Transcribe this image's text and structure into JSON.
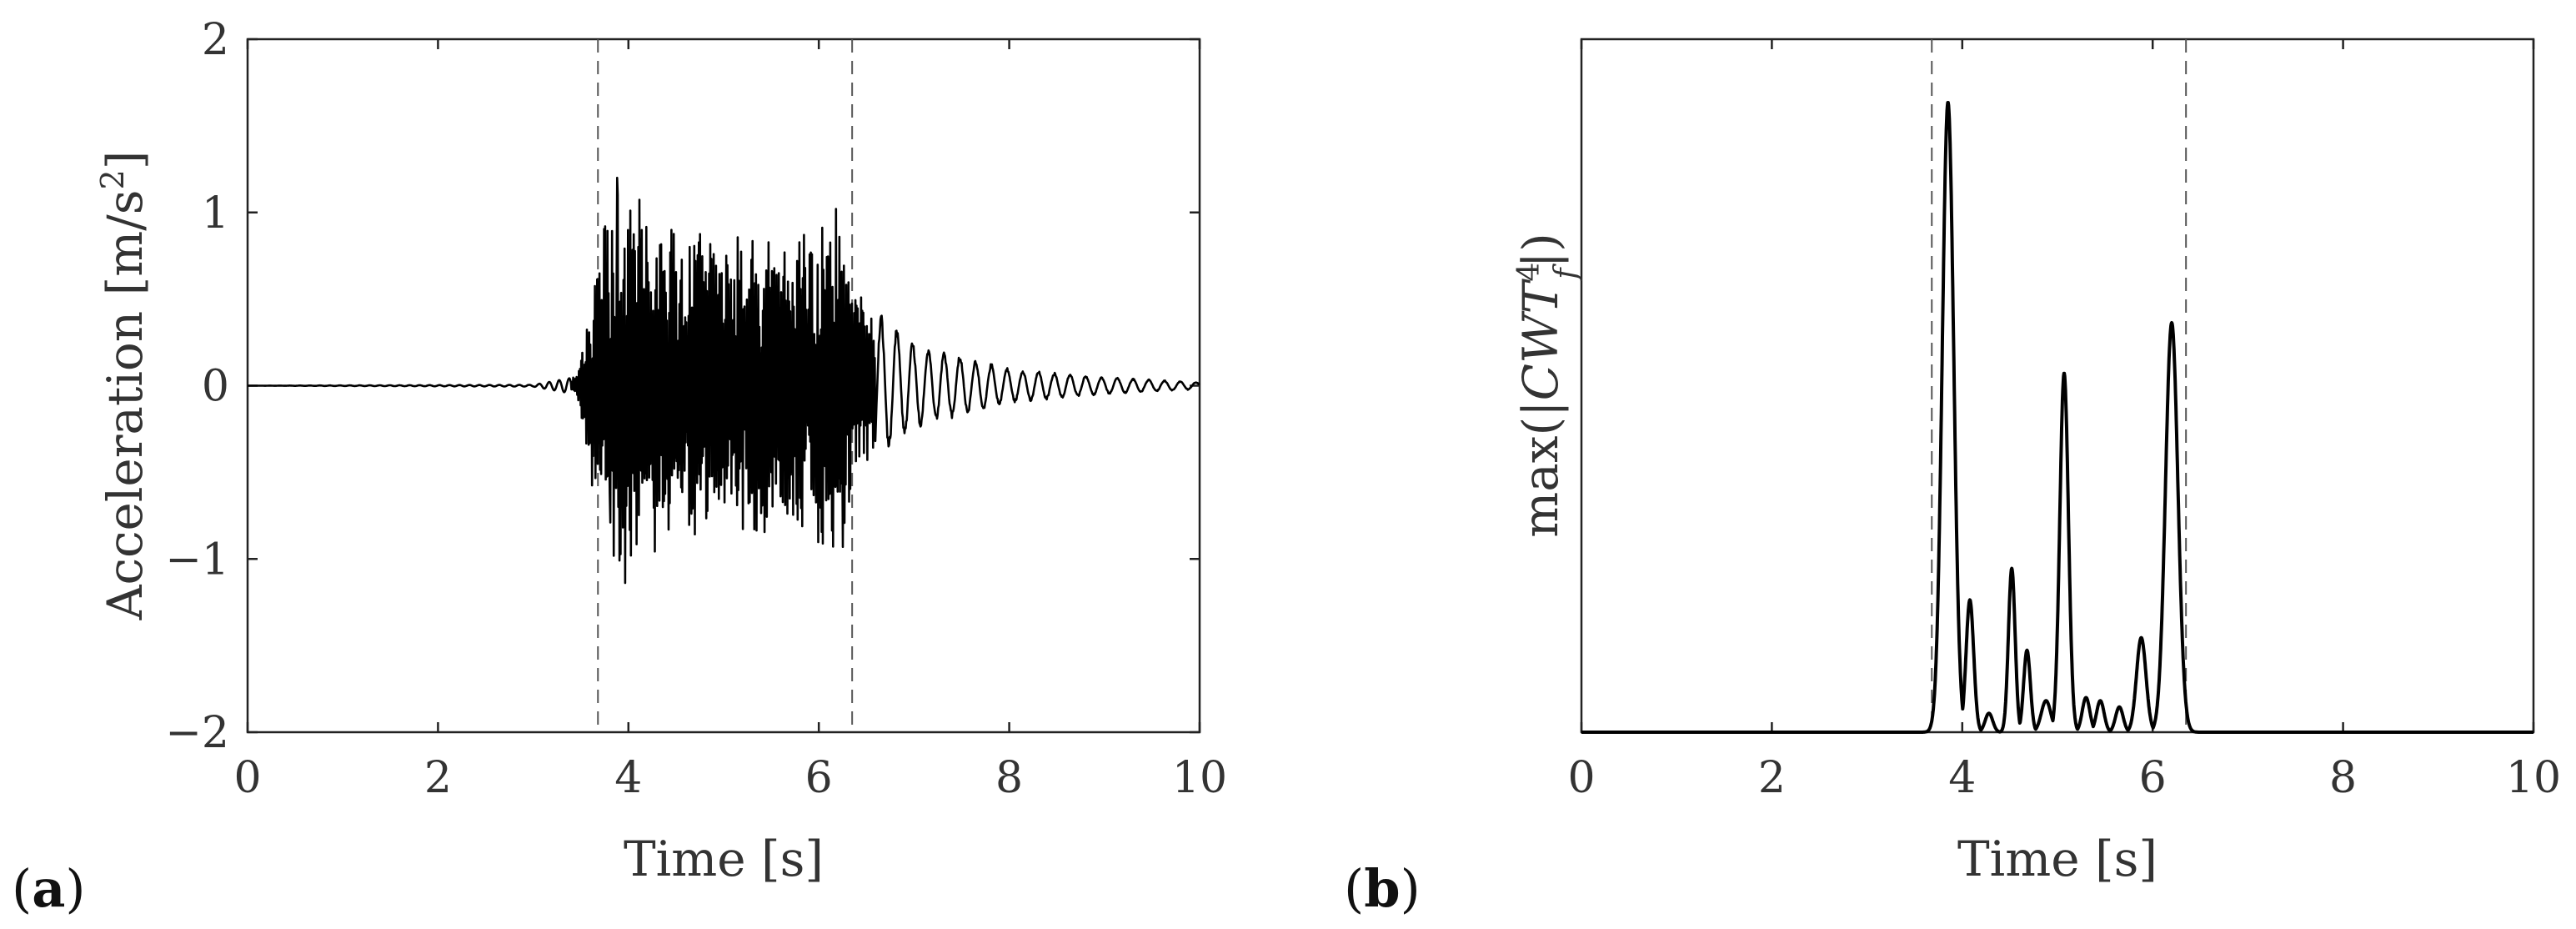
{
  "chart_data": [
    {
      "panel_label": "a",
      "type": "line",
      "xlabel": "Time [s]",
      "ylabel_text": "Acceleration [m/s",
      "ylabel_sup": "2",
      "ylabel_close": "]",
      "xlim": [
        0,
        10
      ],
      "ylim": [
        -2,
        2
      ],
      "xticks": [
        0,
        2,
        4,
        6,
        8,
        10
      ],
      "yticks": [
        -2,
        -1,
        0,
        1,
        2
      ],
      "xtick_labels": [
        "0",
        "2",
        "4",
        "6",
        "8",
        "10"
      ],
      "ytick_labels": [
        "−2",
        "−1",
        "0",
        "1",
        "2"
      ],
      "vlines": [
        3.68,
        6.35
      ],
      "grid": false,
      "series_envelope": [
        {
          "t": 0.0,
          "amp": 0.0
        },
        {
          "t": 3.0,
          "amp": 0.005
        },
        {
          "t": 3.45,
          "amp": 0.05
        },
        {
          "t": 3.55,
          "amp": 0.35
        },
        {
          "t": 3.7,
          "amp": 0.9
        },
        {
          "t": 3.85,
          "amp": 1.2
        },
        {
          "t": 4.5,
          "amp": 0.9
        },
        {
          "t": 5.5,
          "amp": 0.85
        },
        {
          "t": 6.2,
          "amp": 1.0
        },
        {
          "t": 6.4,
          "amp": 0.55
        },
        {
          "t": 7.0,
          "amp": 0.25
        },
        {
          "t": 8.0,
          "amp": 0.1
        },
        {
          "t": 9.0,
          "amp": 0.05
        },
        {
          "t": 10.0,
          "amp": 0.02
        }
      ],
      "peaks": [
        {
          "t": 3.88,
          "y": 1.2
        },
        {
          "t": 4.02,
          "y": -0.98
        },
        {
          "t": 6.18,
          "y": 1.02
        },
        {
          "t": 6.25,
          "y": -0.93
        },
        {
          "t": 3.75,
          "y": 0.92
        },
        {
          "t": 3.8,
          "y": -0.62
        }
      ]
    },
    {
      "panel_label": "b",
      "type": "line",
      "xlabel": "Time [s]",
      "ylabel_prefix": "max(|",
      "ylabel_var": "CWT",
      "ylabel_sup": "4",
      "ylabel_sub": "f",
      "ylabel_suffix": "|)",
      "xlim": [
        0,
        10
      ],
      "ylim": [
        0,
        1.1
      ],
      "xticks": [
        0,
        2,
        4,
        6,
        8,
        10
      ],
      "xtick_labels": [
        "0",
        "2",
        "4",
        "6",
        "8",
        "10"
      ],
      "vlines": [
        3.68,
        6.35
      ],
      "grid": false,
      "peaks": [
        {
          "t": 3.85,
          "y": 1.0,
          "w": 0.06
        },
        {
          "t": 4.08,
          "y": 0.21,
          "w": 0.04
        },
        {
          "t": 4.28,
          "y": 0.03,
          "w": 0.04
        },
        {
          "t": 4.52,
          "y": 0.26,
          "w": 0.035
        },
        {
          "t": 4.68,
          "y": 0.13,
          "w": 0.035
        },
        {
          "t": 4.88,
          "y": 0.05,
          "w": 0.05
        },
        {
          "t": 5.07,
          "y": 0.57,
          "w": 0.045
        },
        {
          "t": 5.3,
          "y": 0.055,
          "w": 0.04
        },
        {
          "t": 5.45,
          "y": 0.05,
          "w": 0.04
        },
        {
          "t": 5.65,
          "y": 0.04,
          "w": 0.04
        },
        {
          "t": 5.88,
          "y": 0.15,
          "w": 0.05
        },
        {
          "t": 6.2,
          "y": 0.65,
          "w": 0.065
        }
      ]
    }
  ]
}
